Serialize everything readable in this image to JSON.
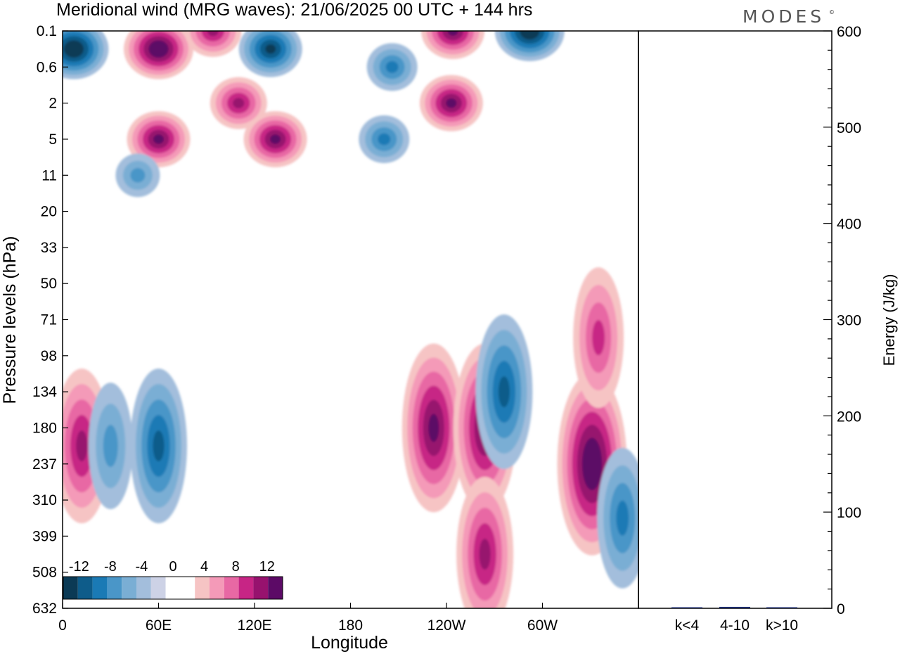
{
  "chart_data": [
    {
      "type": "heatmap",
      "title": "Meridional wind (MRG waves):  21/06/2025  00 UTC  + 144 hrs",
      "xlabel": "Longitude",
      "ylabel": "Pressure levels (hPa)",
      "x_ticks": [
        "0",
        "60E",
        "120E",
        "180",
        "120W",
        "60W"
      ],
      "x_tick_degrees": [
        0,
        60,
        120,
        180,
        240,
        300
      ],
      "xlim": [
        0,
        360
      ],
      "y_ticks": [
        "0.1",
        "0.6",
        "2",
        "5",
        "11",
        "20",
        "33",
        "50",
        "71",
        "98",
        "134",
        "180",
        "237",
        "310",
        "399",
        "508",
        "632"
      ],
      "y_scale": "model levels (log-like pressure)",
      "color_scale": {
        "labels": [
          "-12",
          "-8",
          "-4",
          "0",
          "4",
          "8",
          "12"
        ],
        "levels": [
          -14,
          -12,
          -10,
          -8,
          -6,
          -4,
          -2,
          0,
          2,
          4,
          6,
          8,
          10,
          12,
          14
        ],
        "colors": [
          "#0b3a55",
          "#0e5c8a",
          "#1a7ab5",
          "#4a96c8",
          "#7aaed4",
          "#a3bedc",
          "#cdd2e6",
          "#ffffff",
          "#ffffff",
          "#f6c4c4",
          "#f49ab8",
          "#e868a4",
          "#c72585",
          "#97126e",
          "#5c0a66"
        ]
      },
      "features": [
        {
          "lon": 7,
          "level": "0.1-0.6",
          "value": -14
        },
        {
          "lon": 60,
          "level": "0.1-0.6",
          "value": 14
        },
        {
          "lon": 94,
          "level": "0.1",
          "value": 10
        },
        {
          "lon": 130,
          "level": "0.1-0.6",
          "value": -12
        },
        {
          "lon": 206,
          "level": "0.6",
          "value": -8
        },
        {
          "lon": 244,
          "level": "0.1",
          "value": 12
        },
        {
          "lon": 292,
          "level": "0.1",
          "value": -14
        },
        {
          "lon": 243,
          "level": "2",
          "value": 12
        },
        {
          "lon": 110,
          "level": "2",
          "value": 10
        },
        {
          "lon": 60,
          "level": "5",
          "value": 12
        },
        {
          "lon": 133,
          "level": "5",
          "value": 12
        },
        {
          "lon": 47,
          "level": "11",
          "value": -6
        },
        {
          "lon": 201,
          "level": "5",
          "value": -8
        },
        {
          "lon": 12,
          "level": "180-237",
          "value": 10
        },
        {
          "lon": 30,
          "level": "180-237",
          "value": -6
        },
        {
          "lon": 60,
          "level": "180-237",
          "value": -10
        },
        {
          "lon": 232,
          "level": "180",
          "value": 12
        },
        {
          "lon": 264,
          "level": "180",
          "value": 12
        },
        {
          "lon": 276,
          "level": "134",
          "value": -10
        },
        {
          "lon": 264,
          "level": "399-508",
          "value": 10
        },
        {
          "lon": 331,
          "level": "237",
          "value": 14
        },
        {
          "lon": 350,
          "level": "310-399",
          "value": -8
        },
        {
          "lon": 335,
          "level": "71-98",
          "value": 8
        }
      ]
    },
    {
      "type": "bar",
      "ylabel": "Energy (J/kg)",
      "ylim": [
        0,
        600
      ],
      "y_ticks": [
        0,
        100,
        200,
        300,
        400,
        500,
        600
      ],
      "categories": [
        "k<4",
        "4-10",
        "k>10"
      ],
      "values": [
        0.5,
        1.5,
        0.3
      ]
    }
  ],
  "logo": "MODES",
  "logo_mark": "©"
}
